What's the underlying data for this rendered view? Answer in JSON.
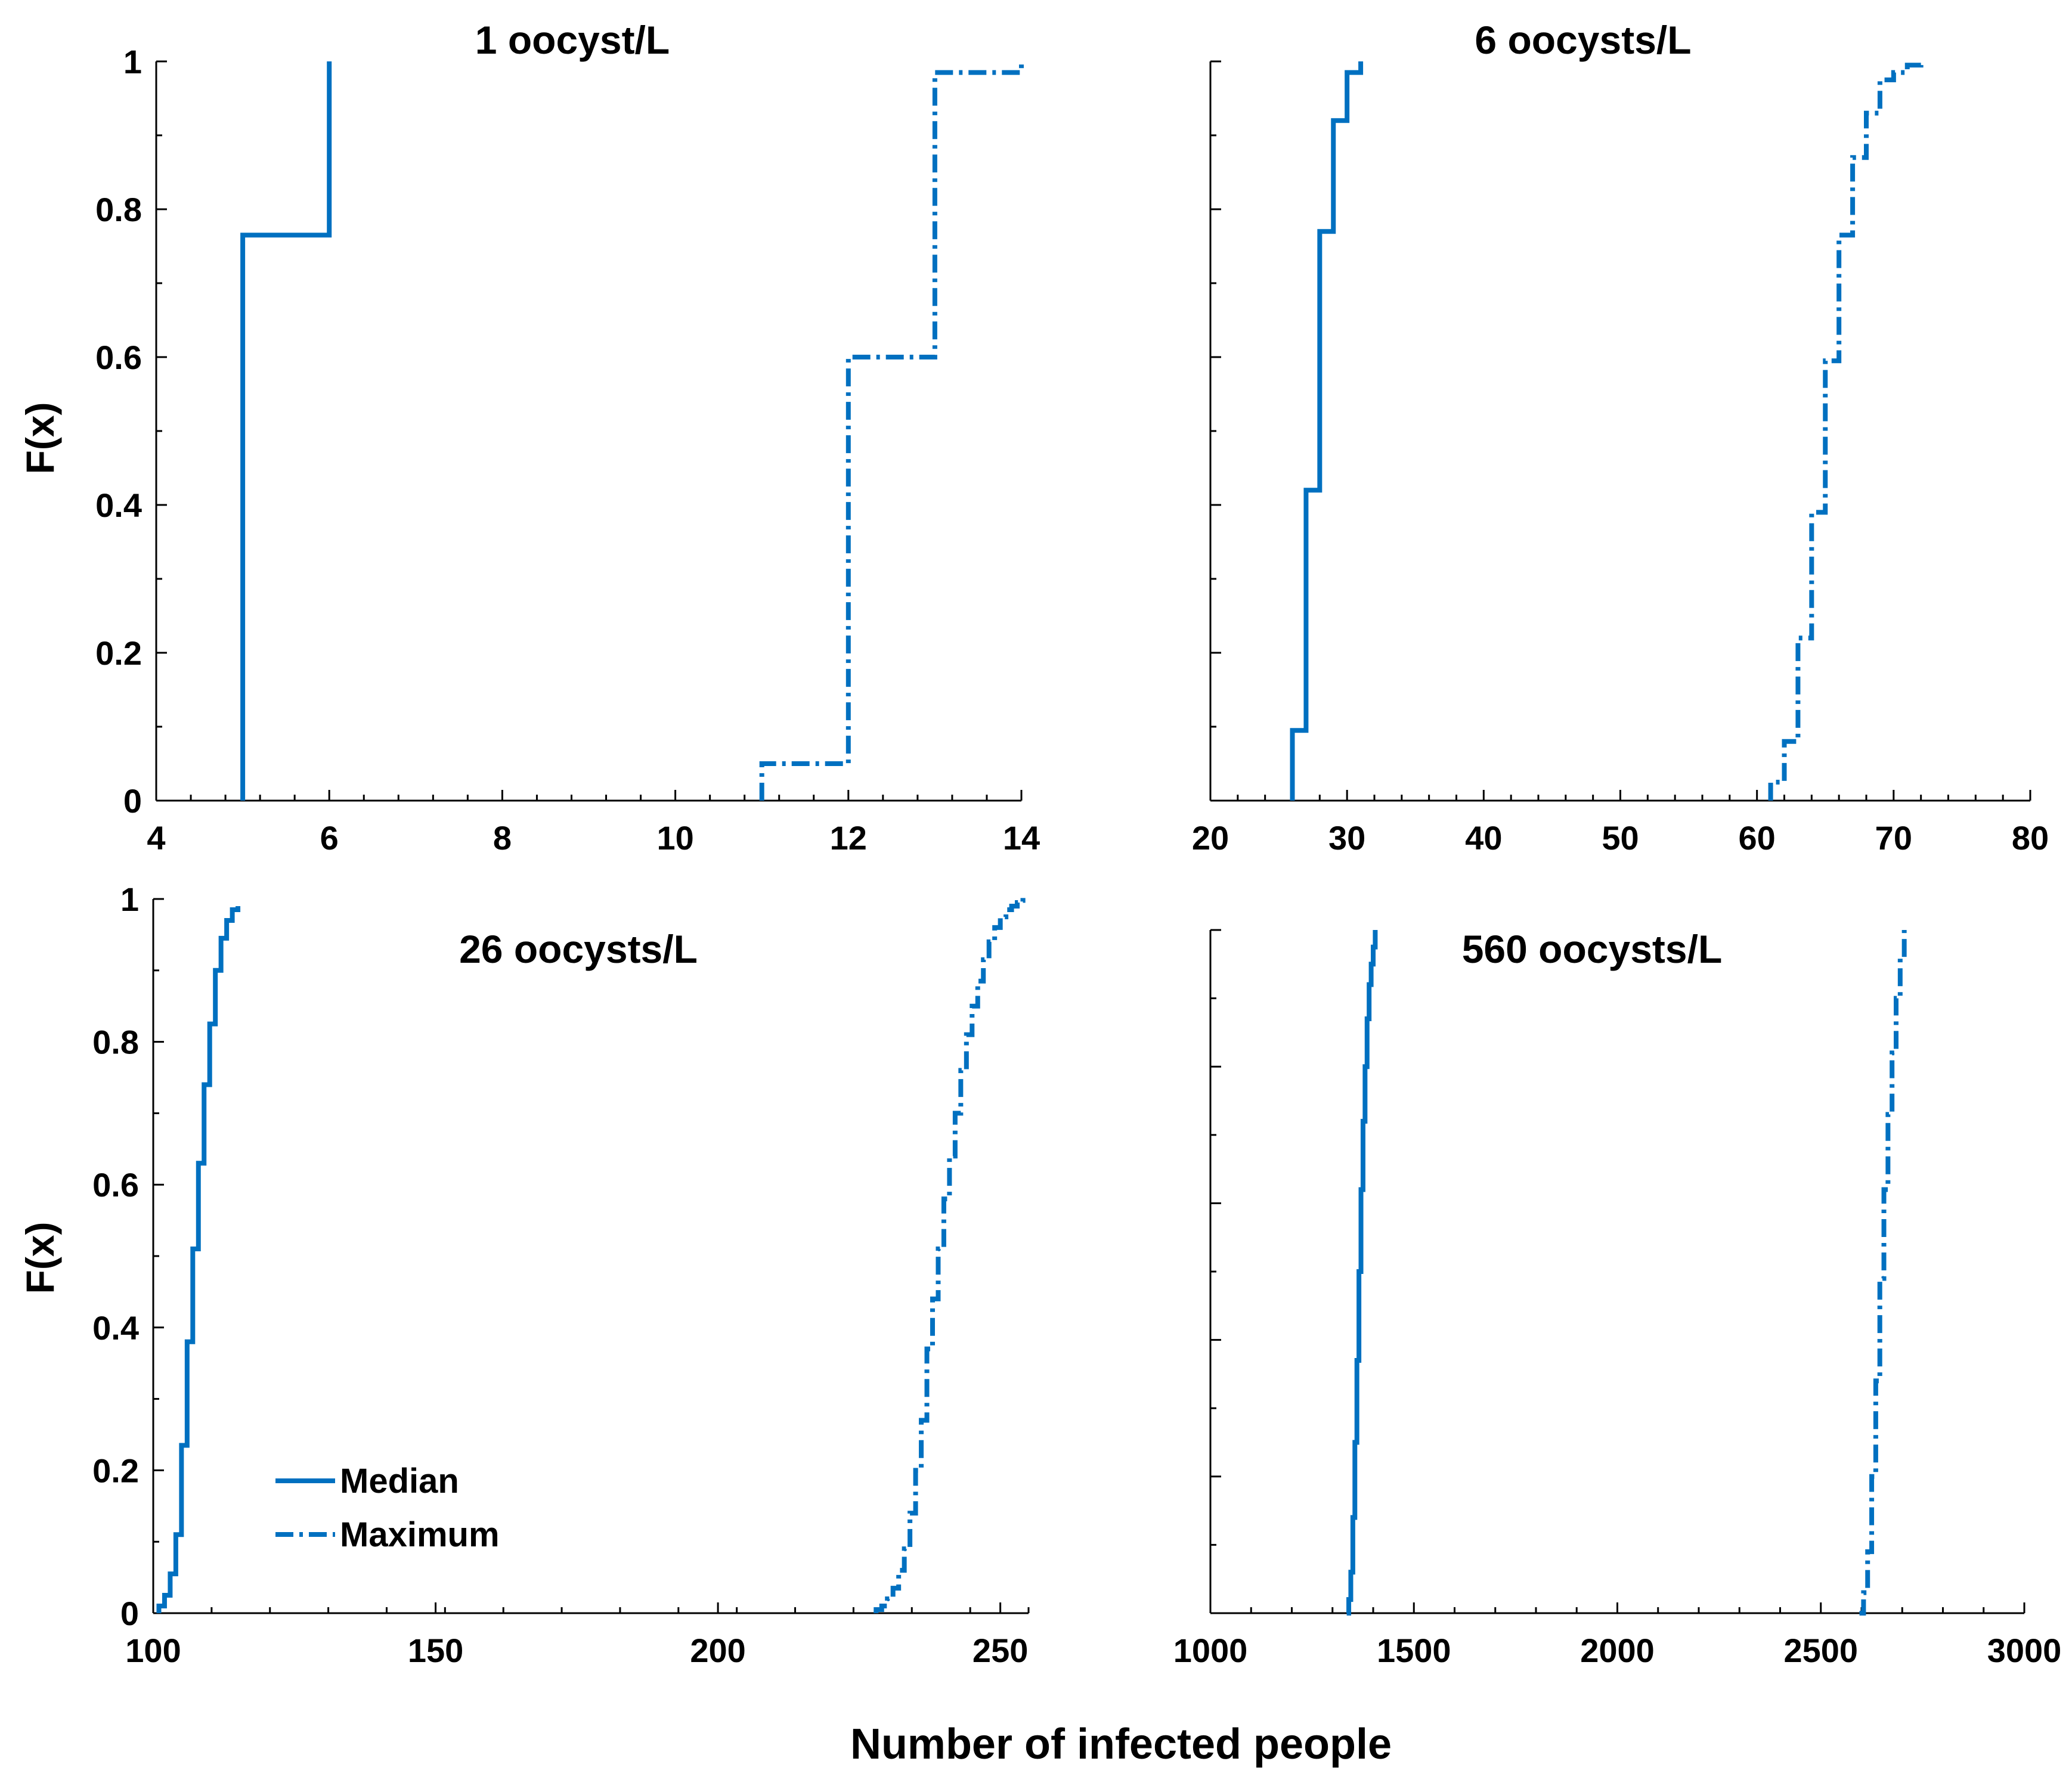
{
  "chart_data": [
    {
      "type": "line",
      "subtype": "empirical-cdf-step",
      "title": "1 oocyst/L",
      "ylabel": "F(x)",
      "xlim": [
        4,
        14
      ],
      "ylim": [
        0,
        1
      ],
      "xticks": [
        4,
        6,
        8,
        10,
        12,
        14
      ],
      "xtick_labels": [
        "4",
        "6",
        "8",
        "10",
        "12",
        "14"
      ],
      "yticks": [
        0,
        0.2,
        0.4,
        0.6,
        0.8,
        1
      ],
      "ytick_labels": [
        "0",
        "0.2",
        "0.4",
        "0.6",
        "0.8",
        "1"
      ],
      "show_ytick_labels": true,
      "series": [
        {
          "name": "Median",
          "style": "solid",
          "x": [
            5,
            6
          ],
          "y": [
            0.765,
            1.0
          ]
        },
        {
          "name": "Maximum",
          "style": "dashdot",
          "x": [
            11,
            12,
            13,
            14
          ],
          "y": [
            0.05,
            0.6,
            0.985,
            1.0
          ]
        }
      ]
    },
    {
      "type": "line",
      "subtype": "empirical-cdf-step",
      "title": "6 oocysts/L",
      "ylabel": "",
      "xlim": [
        20,
        80
      ],
      "ylim": [
        0,
        1
      ],
      "xticks": [
        20,
        30,
        40,
        50,
        60,
        70,
        80
      ],
      "xtick_labels": [
        "20",
        "30",
        "40",
        "50",
        "60",
        "70",
        "80"
      ],
      "yticks": [
        0,
        0.2,
        0.4,
        0.6,
        0.8,
        1
      ],
      "ytick_labels": [],
      "show_ytick_labels": false,
      "series": [
        {
          "name": "Median",
          "style": "solid",
          "x": [
            26,
            27,
            28,
            29,
            30,
            31
          ],
          "y": [
            0.095,
            0.42,
            0.77,
            0.92,
            0.985,
            1.0
          ]
        },
        {
          "name": "Maximum",
          "style": "dashdot",
          "x": [
            61,
            62,
            63,
            64,
            65,
            66,
            67,
            68,
            69,
            70,
            71,
            72
          ],
          "y": [
            0.025,
            0.08,
            0.22,
            0.39,
            0.595,
            0.765,
            0.87,
            0.93,
            0.975,
            0.985,
            0.995,
            1.0
          ]
        }
      ]
    },
    {
      "type": "line",
      "subtype": "empirical-cdf-step",
      "title": "26 oocysts/L",
      "ylabel": "F(x)",
      "xlim": [
        100,
        255
      ],
      "ylim": [
        0,
        1
      ],
      "xticks": [
        100,
        150,
        200,
        250
      ],
      "xtick_labels": [
        "100",
        "150",
        "200",
        "250"
      ],
      "yticks": [
        0,
        0.2,
        0.4,
        0.6,
        0.8,
        1
      ],
      "ytick_labels": [
        "0",
        "0.2",
        "0.4",
        "0.6",
        "0.8",
        "1"
      ],
      "show_ytick_labels": true,
      "series": [
        {
          "name": "Median",
          "style": "solid",
          "x": [
            101,
            102,
            103,
            104,
            105,
            106,
            107,
            108,
            109,
            110,
            111,
            112,
            113,
            114,
            115
          ],
          "y": [
            0.01,
            0.025,
            0.055,
            0.11,
            0.235,
            0.38,
            0.51,
            0.63,
            0.74,
            0.825,
            0.9,
            0.945,
            0.97,
            0.985,
            0.99
          ]
        },
        {
          "name": "Maximum",
          "style": "dashdot",
          "x": [
            228,
            229,
            230,
            231,
            232,
            233,
            234,
            235,
            236,
            237,
            238,
            239,
            240,
            241,
            242,
            243,
            244,
            245,
            246,
            247,
            248,
            249,
            250,
            251,
            252,
            253,
            254,
            255
          ],
          "y": [
            0.005,
            0.01,
            0.02,
            0.035,
            0.06,
            0.09,
            0.14,
            0.2,
            0.27,
            0.37,
            0.44,
            0.51,
            0.58,
            0.64,
            0.7,
            0.76,
            0.81,
            0.85,
            0.885,
            0.915,
            0.94,
            0.96,
            0.975,
            0.985,
            0.99,
            0.995,
            0.998,
            1.0
          ]
        }
      ]
    },
    {
      "type": "line",
      "subtype": "empirical-cdf-step",
      "title": "560 oocysts/L",
      "ylabel": "",
      "xlim": [
        1000,
        3000
      ],
      "ylim": [
        0,
        1
      ],
      "xticks": [
        1000,
        1500,
        2000,
        2500,
        3000
      ],
      "xtick_labels": [
        "1000",
        "1500",
        "2000",
        "2500",
        "3000"
      ],
      "yticks": [
        0,
        0.2,
        0.4,
        0.6,
        0.8,
        1
      ],
      "ytick_labels": [],
      "show_ytick_labels": false,
      "series": [
        {
          "name": "Median",
          "style": "solid",
          "x": [
            1335,
            1340,
            1345,
            1350,
            1355,
            1360,
            1365,
            1370,
            1375,
            1380,
            1385,
            1390,
            1395,
            1400,
            1405
          ],
          "y": [
            0.0,
            0.02,
            0.06,
            0.14,
            0.25,
            0.37,
            0.5,
            0.62,
            0.72,
            0.8,
            0.87,
            0.92,
            0.95,
            0.975,
            1.0
          ]
        },
        {
          "name": "Maximum",
          "style": "dashdot",
          "x": [
            2595,
            2605,
            2615,
            2625,
            2635,
            2645,
            2655,
            2665,
            2675,
            2685,
            2695,
            2705
          ],
          "y": [
            0.0,
            0.03,
            0.09,
            0.2,
            0.34,
            0.49,
            0.62,
            0.73,
            0.82,
            0.9,
            0.96,
            1.0
          ]
        }
      ]
    }
  ],
  "shared_xlabel": "Number of infected people",
  "legend": {
    "location": "lower-left of the 26 oocysts/L panel",
    "entries": [
      {
        "label": "Median",
        "style": "solid"
      },
      {
        "label": "Maximum",
        "style": "dashdot"
      }
    ]
  },
  "colors": {
    "series": "#0070c0",
    "axes": "#000000",
    "background": "#ffffff"
  }
}
